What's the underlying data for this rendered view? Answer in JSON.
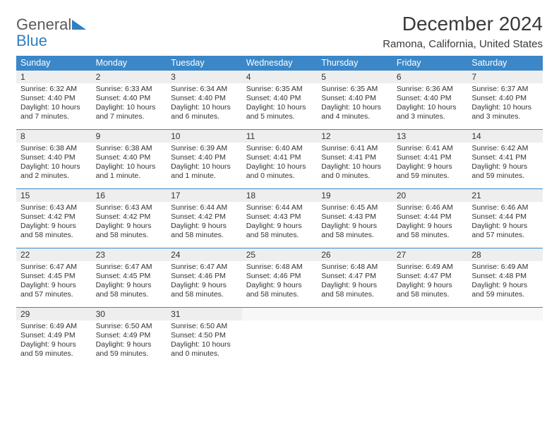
{
  "logo": {
    "general": "General",
    "blue": "Blue"
  },
  "title": "December 2024",
  "location": "Ramona, California, United States",
  "header_bg": "#3b87c8",
  "daynum_bg": "#eeeeee",
  "divider_color": "#3b87c8",
  "days_of_week": [
    "Sunday",
    "Monday",
    "Tuesday",
    "Wednesday",
    "Thursday",
    "Friday",
    "Saturday"
  ],
  "weeks": [
    [
      {
        "n": "1",
        "sr": "Sunrise: 6:32 AM",
        "ss": "Sunset: 4:40 PM",
        "dl": "Daylight: 10 hours and 7 minutes."
      },
      {
        "n": "2",
        "sr": "Sunrise: 6:33 AM",
        "ss": "Sunset: 4:40 PM",
        "dl": "Daylight: 10 hours and 7 minutes."
      },
      {
        "n": "3",
        "sr": "Sunrise: 6:34 AM",
        "ss": "Sunset: 4:40 PM",
        "dl": "Daylight: 10 hours and 6 minutes."
      },
      {
        "n": "4",
        "sr": "Sunrise: 6:35 AM",
        "ss": "Sunset: 4:40 PM",
        "dl": "Daylight: 10 hours and 5 minutes."
      },
      {
        "n": "5",
        "sr": "Sunrise: 6:35 AM",
        "ss": "Sunset: 4:40 PM",
        "dl": "Daylight: 10 hours and 4 minutes."
      },
      {
        "n": "6",
        "sr": "Sunrise: 6:36 AM",
        "ss": "Sunset: 4:40 PM",
        "dl": "Daylight: 10 hours and 3 minutes."
      },
      {
        "n": "7",
        "sr": "Sunrise: 6:37 AM",
        "ss": "Sunset: 4:40 PM",
        "dl": "Daylight: 10 hours and 3 minutes."
      }
    ],
    [
      {
        "n": "8",
        "sr": "Sunrise: 6:38 AM",
        "ss": "Sunset: 4:40 PM",
        "dl": "Daylight: 10 hours and 2 minutes."
      },
      {
        "n": "9",
        "sr": "Sunrise: 6:38 AM",
        "ss": "Sunset: 4:40 PM",
        "dl": "Daylight: 10 hours and 1 minute."
      },
      {
        "n": "10",
        "sr": "Sunrise: 6:39 AM",
        "ss": "Sunset: 4:40 PM",
        "dl": "Daylight: 10 hours and 1 minute."
      },
      {
        "n": "11",
        "sr": "Sunrise: 6:40 AM",
        "ss": "Sunset: 4:41 PM",
        "dl": "Daylight: 10 hours and 0 minutes."
      },
      {
        "n": "12",
        "sr": "Sunrise: 6:41 AM",
        "ss": "Sunset: 4:41 PM",
        "dl": "Daylight: 10 hours and 0 minutes."
      },
      {
        "n": "13",
        "sr": "Sunrise: 6:41 AM",
        "ss": "Sunset: 4:41 PM",
        "dl": "Daylight: 9 hours and 59 minutes."
      },
      {
        "n": "14",
        "sr": "Sunrise: 6:42 AM",
        "ss": "Sunset: 4:41 PM",
        "dl": "Daylight: 9 hours and 59 minutes."
      }
    ],
    [
      {
        "n": "15",
        "sr": "Sunrise: 6:43 AM",
        "ss": "Sunset: 4:42 PM",
        "dl": "Daylight: 9 hours and 58 minutes."
      },
      {
        "n": "16",
        "sr": "Sunrise: 6:43 AM",
        "ss": "Sunset: 4:42 PM",
        "dl": "Daylight: 9 hours and 58 minutes."
      },
      {
        "n": "17",
        "sr": "Sunrise: 6:44 AM",
        "ss": "Sunset: 4:42 PM",
        "dl": "Daylight: 9 hours and 58 minutes."
      },
      {
        "n": "18",
        "sr": "Sunrise: 6:44 AM",
        "ss": "Sunset: 4:43 PM",
        "dl": "Daylight: 9 hours and 58 minutes."
      },
      {
        "n": "19",
        "sr": "Sunrise: 6:45 AM",
        "ss": "Sunset: 4:43 PM",
        "dl": "Daylight: 9 hours and 58 minutes."
      },
      {
        "n": "20",
        "sr": "Sunrise: 6:46 AM",
        "ss": "Sunset: 4:44 PM",
        "dl": "Daylight: 9 hours and 58 minutes."
      },
      {
        "n": "21",
        "sr": "Sunrise: 6:46 AM",
        "ss": "Sunset: 4:44 PM",
        "dl": "Daylight: 9 hours and 57 minutes."
      }
    ],
    [
      {
        "n": "22",
        "sr": "Sunrise: 6:47 AM",
        "ss": "Sunset: 4:45 PM",
        "dl": "Daylight: 9 hours and 57 minutes."
      },
      {
        "n": "23",
        "sr": "Sunrise: 6:47 AM",
        "ss": "Sunset: 4:45 PM",
        "dl": "Daylight: 9 hours and 58 minutes."
      },
      {
        "n": "24",
        "sr": "Sunrise: 6:47 AM",
        "ss": "Sunset: 4:46 PM",
        "dl": "Daylight: 9 hours and 58 minutes."
      },
      {
        "n": "25",
        "sr": "Sunrise: 6:48 AM",
        "ss": "Sunset: 4:46 PM",
        "dl": "Daylight: 9 hours and 58 minutes."
      },
      {
        "n": "26",
        "sr": "Sunrise: 6:48 AM",
        "ss": "Sunset: 4:47 PM",
        "dl": "Daylight: 9 hours and 58 minutes."
      },
      {
        "n": "27",
        "sr": "Sunrise: 6:49 AM",
        "ss": "Sunset: 4:47 PM",
        "dl": "Daylight: 9 hours and 58 minutes."
      },
      {
        "n": "28",
        "sr": "Sunrise: 6:49 AM",
        "ss": "Sunset: 4:48 PM",
        "dl": "Daylight: 9 hours and 59 minutes."
      }
    ],
    [
      {
        "n": "29",
        "sr": "Sunrise: 6:49 AM",
        "ss": "Sunset: 4:49 PM",
        "dl": "Daylight: 9 hours and 59 minutes."
      },
      {
        "n": "30",
        "sr": "Sunrise: 6:50 AM",
        "ss": "Sunset: 4:49 PM",
        "dl": "Daylight: 9 hours and 59 minutes."
      },
      {
        "n": "31",
        "sr": "Sunrise: 6:50 AM",
        "ss": "Sunset: 4:50 PM",
        "dl": "Daylight: 10 hours and 0 minutes."
      },
      null,
      null,
      null,
      null
    ]
  ]
}
